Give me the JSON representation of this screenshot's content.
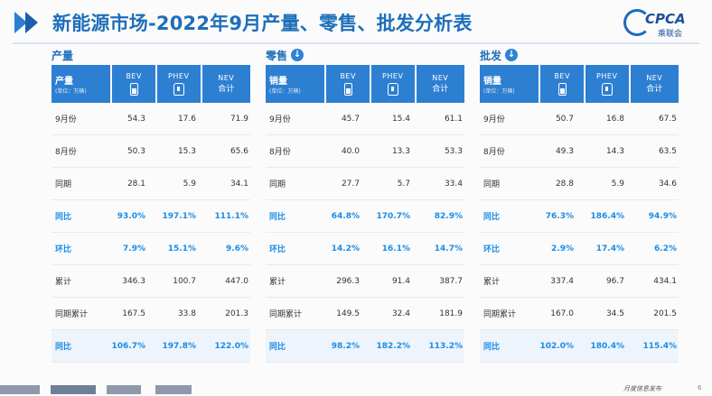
{
  "title": "新能源市场-2022年9月产量、零售、批发分析表",
  "logo": {
    "text": "CPCA",
    "sub": "乘联会"
  },
  "panels": [
    {
      "name": "产量",
      "arrow": "",
      "header": {
        "label": "产量",
        "sub": "(单位：万辆)",
        "bev": "BEV",
        "phev": "PHEV",
        "nev": "NEV",
        "nev_sub": "合计"
      },
      "rows": [
        {
          "label": "9月份",
          "bev": "54.3",
          "phev": "17.6",
          "nev": "71.9"
        },
        {
          "label": "8月份",
          "bev": "50.3",
          "phev": "15.3",
          "nev": "65.6"
        },
        {
          "label": "同期",
          "bev": "28.1",
          "phev": "5.9",
          "nev": "34.1"
        },
        {
          "label": "同比",
          "bev": "93.0%",
          "phev": "197.1%",
          "nev": "111.1%"
        },
        {
          "label": "环比",
          "bev": "7.9%",
          "phev": "15.1%",
          "nev": "9.6%"
        },
        {
          "label": "累计",
          "bev": "346.3",
          "phev": "100.7",
          "nev": "447.0"
        },
        {
          "label": "同期累计",
          "bev": "167.5",
          "phev": "33.8",
          "nev": "201.3"
        },
        {
          "label": "同比",
          "bev": "106.7%",
          "phev": "197.8%",
          "nev": "122.0%"
        }
      ]
    },
    {
      "name": "零售",
      "arrow": "↓",
      "header": {
        "label": "销量",
        "sub": "(单位：万辆)",
        "bev": "BEV",
        "phev": "PHEV",
        "nev": "NEV",
        "nev_sub": "合计"
      },
      "rows": [
        {
          "label": "9月份",
          "bev": "45.7",
          "phev": "15.4",
          "nev": "61.1"
        },
        {
          "label": "8月份",
          "bev": "40.0",
          "phev": "13.3",
          "nev": "53.3"
        },
        {
          "label": "同期",
          "bev": "27.7",
          "phev": "5.7",
          "nev": "33.4"
        },
        {
          "label": "同比",
          "bev": "64.8%",
          "phev": "170.7%",
          "nev": "82.9%"
        },
        {
          "label": "环比",
          "bev": "14.2%",
          "phev": "16.1%",
          "nev": "14.7%"
        },
        {
          "label": "累计",
          "bev": "296.3",
          "phev": "91.4",
          "nev": "387.7"
        },
        {
          "label": "同期累计",
          "bev": "149.5",
          "phev": "32.4",
          "nev": "181.9"
        },
        {
          "label": "同比",
          "bev": "98.2%",
          "phev": "182.2%",
          "nev": "113.2%"
        }
      ]
    },
    {
      "name": "批发",
      "arrow": "↓",
      "header": {
        "label": "销量",
        "sub": "(单位：万辆)",
        "bev": "BEV",
        "phev": "PHEV",
        "nev": "NEV",
        "nev_sub": "合计"
      },
      "rows": [
        {
          "label": "9月份",
          "bev": "50.7",
          "phev": "16.8",
          "nev": "67.5"
        },
        {
          "label": "8月份",
          "bev": "49.3",
          "phev": "14.3",
          "nev": "63.5"
        },
        {
          "label": "同期",
          "bev": "28.8",
          "phev": "5.9",
          "nev": "34.6"
        },
        {
          "label": "同比",
          "bev": "76.3%",
          "phev": "186.4%",
          "nev": "94.9%"
        },
        {
          "label": "环比",
          "bev": "2.9%",
          "phev": "17.4%",
          "nev": "6.2%"
        },
        {
          "label": "累计",
          "bev": "337.4",
          "phev": "96.7",
          "nev": "434.1"
        },
        {
          "label": "同期累计",
          "bev": "167.0",
          "phev": "34.5",
          "nev": "201.5"
        },
        {
          "label": "同比",
          "bev": "102.0%",
          "phev": "180.4%",
          "nev": "115.4%"
        }
      ]
    }
  ],
  "footer": {
    "tabs": [
      "",
      "",
      "",
      ""
    ],
    "text": "月度信息发布",
    "page": "6"
  },
  "colors": {
    "accent": "#2d7fd2",
    "highlight": "#1a8ce6",
    "title": "#1d6fba"
  }
}
